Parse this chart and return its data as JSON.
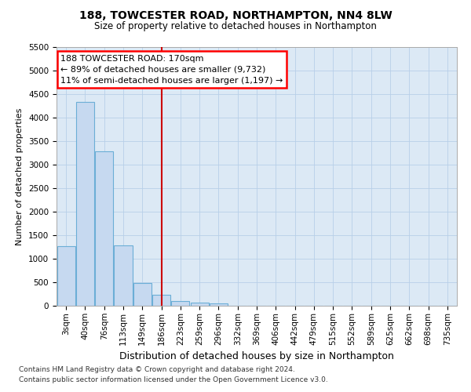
{
  "title": "188, TOWCESTER ROAD, NORTHAMPTON, NN4 8LW",
  "subtitle": "Size of property relative to detached houses in Northampton",
  "xlabel": "Distribution of detached houses by size in Northampton",
  "ylabel": "Number of detached properties",
  "footnote1": "Contains HM Land Registry data © Crown copyright and database right 2024.",
  "footnote2": "Contains public sector information licensed under the Open Government Licence v3.0.",
  "annotation_line1": "188 TOWCESTER ROAD: 170sqm",
  "annotation_line2": "← 89% of detached houses are smaller (9,732)",
  "annotation_line3": "11% of semi-detached houses are larger (1,197) →",
  "bar_categories": [
    "3sqm",
    "40sqm",
    "76sqm",
    "113sqm",
    "149sqm",
    "186sqm",
    "223sqm",
    "259sqm",
    "296sqm",
    "332sqm",
    "369sqm",
    "406sqm",
    "442sqm",
    "479sqm",
    "515sqm",
    "552sqm",
    "589sqm",
    "625sqm",
    "662sqm",
    "698sqm",
    "735sqm"
  ],
  "bar_values": [
    1270,
    4340,
    3290,
    1290,
    480,
    240,
    100,
    70,
    50,
    0,
    0,
    0,
    0,
    0,
    0,
    0,
    0,
    0,
    0,
    0,
    0
  ],
  "bar_color": "#c6d9f0",
  "bar_edge_color": "#6baed6",
  "vline_color": "#cc0000",
  "vline_x": 5.0,
  "ylim": [
    0,
    5500
  ],
  "yticks": [
    0,
    500,
    1000,
    1500,
    2000,
    2500,
    3000,
    3500,
    4000,
    4500,
    5000,
    5500
  ],
  "fig_bg": "#ffffff",
  "axes_bg": "#dce9f5",
  "grid_color": "#b8cfe8",
  "title_fontsize": 10,
  "subtitle_fontsize": 8.5,
  "ylabel_fontsize": 8,
  "xlabel_fontsize": 9,
  "tick_fontsize": 7.5,
  "annot_fontsize": 8,
  "footnote_fontsize": 6.5
}
